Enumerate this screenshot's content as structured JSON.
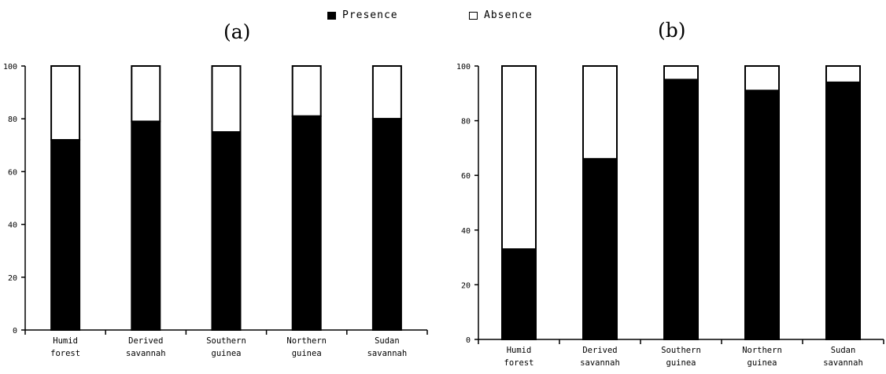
{
  "legend": {
    "presence_label": "Presence",
    "absence_label": "Absence",
    "presence_color": "#000000",
    "absence_color": "#ffffff"
  },
  "chart_data": [
    {
      "type": "bar",
      "stacked": true,
      "title": "(a)",
      "categories": [
        [
          "Humid",
          "forest"
        ],
        [
          "Derived",
          "savannah"
        ],
        [
          "Southern",
          "guinea"
        ],
        [
          "Northern",
          "guinea"
        ],
        [
          "Sudan",
          "savannah"
        ]
      ],
      "series": [
        {
          "name": "Presence",
          "values": [
            72,
            79,
            75,
            81,
            80
          ]
        },
        {
          "name": "Absence",
          "values": [
            28,
            21,
            25,
            19,
            20
          ]
        }
      ],
      "ylim": [
        0,
        100
      ],
      "yticks": [
        "0",
        "20",
        "40",
        "60",
        "80",
        "100"
      ],
      "grid": false,
      "legend_position": "top"
    },
    {
      "type": "bar",
      "stacked": true,
      "title": "(b)",
      "categories": [
        [
          "Humid",
          "forest"
        ],
        [
          "Derived",
          "savannah"
        ],
        [
          "Southern",
          "guinea"
        ],
        [
          "Northern",
          "guinea"
        ],
        [
          "Sudan",
          "savannah"
        ]
      ],
      "series": [
        {
          "name": "Presence",
          "values": [
            33,
            66,
            95,
            91,
            94
          ]
        },
        {
          "name": "Absence",
          "values": [
            67,
            34,
            5,
            9,
            6
          ]
        }
      ],
      "ylim": [
        0,
        100
      ],
      "yticks": [
        "0",
        "20",
        "40",
        "60",
        "80",
        "100"
      ],
      "grid": false,
      "legend_position": "top"
    }
  ]
}
